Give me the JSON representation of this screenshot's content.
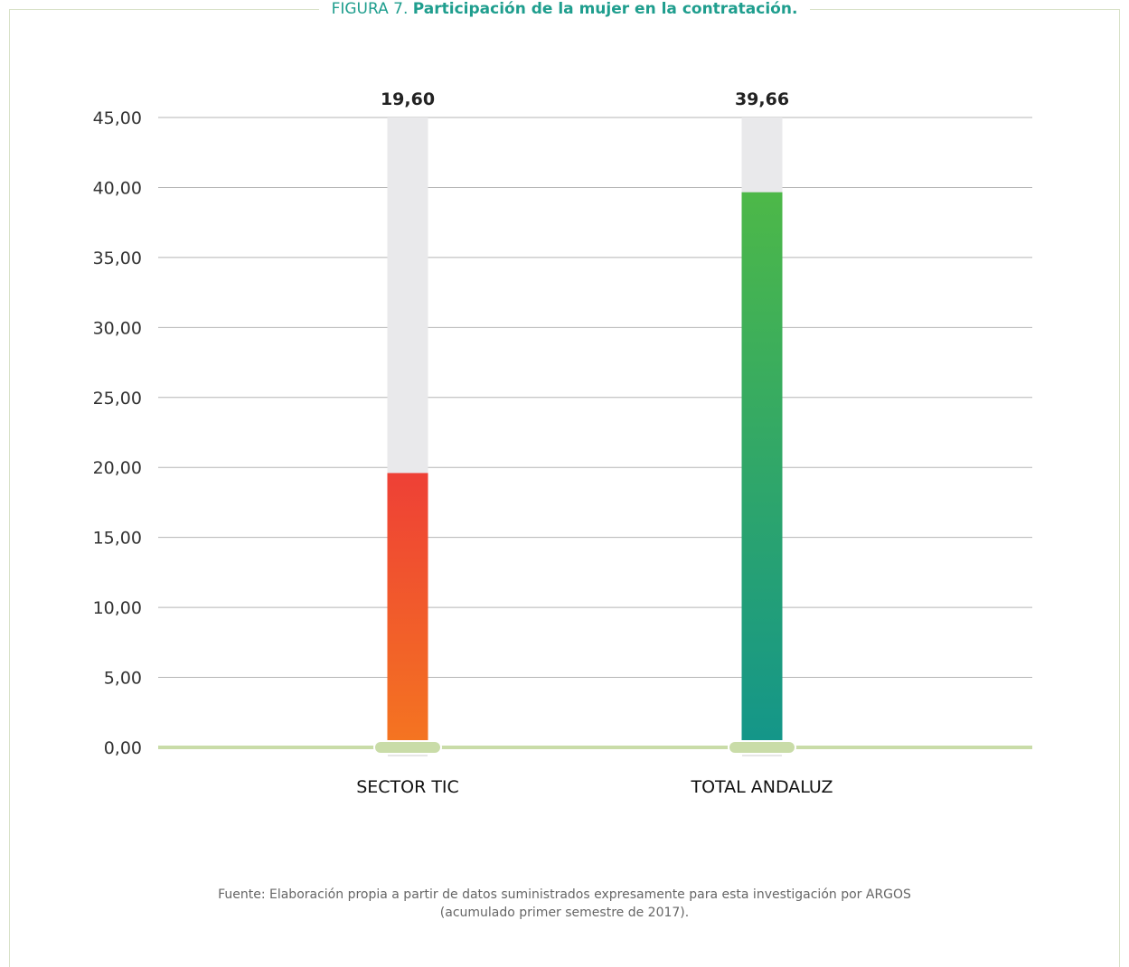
{
  "figure": {
    "title_lead": "FIGURA 7.",
    "title_main": "Participación de la mujer en la contratación."
  },
  "chart_data": {
    "type": "bar",
    "categories": [
      "SECTOR TIC",
      "TOTAL ANDALUZ"
    ],
    "values": [
      19.6,
      39.66
    ],
    "value_labels": [
      "19,60",
      "39,66"
    ],
    "ylim": [
      0,
      45
    ],
    "yticks": [
      "0,00",
      "5,00",
      "10,00",
      "15,00",
      "20,00",
      "25,00",
      "30,00",
      "35,00",
      "40,00",
      "45,00"
    ],
    "grid": true,
    "colors": {
      "SECTOR TIC": {
        "top": "#ee4036",
        "bottom": "#f47421"
      },
      "TOTAL ANDALUZ": {
        "top": "#4db848",
        "bottom": "#149689"
      },
      "track": "#e9e9eb",
      "baseline": "#c9dca8",
      "gridline": "#b5b5b5"
    }
  },
  "source": {
    "line1": "Fuente: Elaboración propia a partir de datos suministrados expresamente para esta investigación por ARGOS",
    "line2": "(acumulado primer semestre de 2017)."
  }
}
